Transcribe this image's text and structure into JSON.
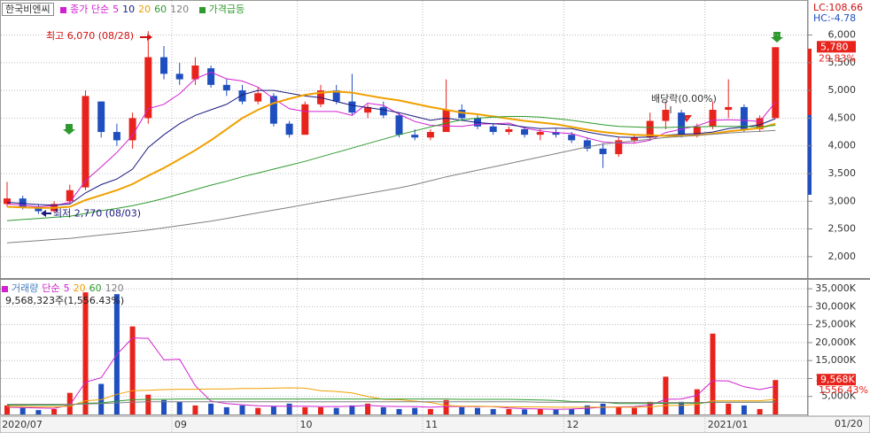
{
  "chart_data": [
    {
      "type": "candlestick",
      "title": "한국비엔씨",
      "indicator": "종가 단순",
      "signal": "가격급등",
      "lc": "LC:108.66",
      "hc": "HC:-4.78",
      "up_color": "#e8231c",
      "down_color": "#1f4fbf",
      "grid": true,
      "categories": [
        "2020/07",
        null,
        null,
        null,
        null,
        null,
        null,
        null,
        null,
        null,
        null,
        "09",
        null,
        null,
        null,
        null,
        null,
        null,
        null,
        "10",
        null,
        null,
        null,
        null,
        null,
        null,
        null,
        "11",
        null,
        null,
        null,
        null,
        null,
        null,
        null,
        null,
        "12",
        null,
        null,
        null,
        null,
        null,
        null,
        null,
        null,
        "2021/01",
        null,
        null,
        null,
        null
      ],
      "ohlc": [
        [
          2950,
          3350,
          2900,
          3050
        ],
        [
          3050,
          3100,
          2850,
          2900
        ],
        [
          2900,
          2950,
          2770,
          2820
        ],
        [
          2820,
          3000,
          2800,
          2950
        ],
        [
          3000,
          3300,
          2950,
          3200
        ],
        [
          3250,
          5000,
          3200,
          4900
        ],
        [
          4800,
          4800,
          4150,
          4250
        ],
        [
          4250,
          4400,
          4000,
          4100
        ],
        [
          4100,
          4600,
          3950,
          4500
        ],
        [
          4500,
          6070,
          4400,
          5600
        ],
        [
          5600,
          5800,
          5200,
          5300
        ],
        [
          5300,
          5500,
          5100,
          5200
        ],
        [
          5200,
          5600,
          5100,
          5450
        ],
        [
          5400,
          5450,
          5050,
          5100
        ],
        [
          5100,
          5200,
          4900,
          5000
        ],
        [
          5000,
          5100,
          4750,
          4800
        ],
        [
          4800,
          5050,
          4750,
          4950
        ],
        [
          4900,
          4950,
          4350,
          4400
        ],
        [
          4400,
          4450,
          4150,
          4200
        ],
        [
          4200,
          4800,
          4200,
          4750
        ],
        [
          4750,
          5100,
          4700,
          5000
        ],
        [
          5000,
          5100,
          4750,
          4800
        ],
        [
          4800,
          5300,
          4550,
          4600
        ],
        [
          4600,
          4750,
          4500,
          4700
        ],
        [
          4700,
          4800,
          4500,
          4550
        ],
        [
          4550,
          4600,
          4150,
          4200
        ],
        [
          4200,
          4300,
          4100,
          4150
        ],
        [
          4150,
          4300,
          4100,
          4250
        ],
        [
          4250,
          5200,
          4250,
          4650
        ],
        [
          4650,
          4750,
          4450,
          4500
        ],
        [
          4500,
          4550,
          4300,
          4350
        ],
        [
          4350,
          4400,
          4200,
          4250
        ],
        [
          4250,
          4350,
          4200,
          4300
        ],
        [
          4300,
          4350,
          4150,
          4200
        ],
        [
          4200,
          4300,
          4100,
          4250
        ],
        [
          4250,
          4300,
          4150,
          4200
        ],
        [
          4200,
          4250,
          4050,
          4100
        ],
        [
          4100,
          4150,
          3900,
          3950
        ],
        [
          3950,
          4050,
          3600,
          3850
        ],
        [
          3850,
          4150,
          3800,
          4100
        ],
        [
          4100,
          4200,
          4050,
          4150
        ],
        [
          4150,
          4600,
          4100,
          4450
        ],
        [
          4450,
          4800,
          4300,
          4650
        ],
        [
          4600,
          4650,
          4150,
          4200
        ],
        [
          4200,
          4400,
          4150,
          4350
        ],
        [
          4350,
          4800,
          4300,
          4650
        ],
        [
          4650,
          5200,
          4500,
          4700
        ],
        [
          4700,
          4750,
          4250,
          4300
        ],
        [
          4300,
          4550,
          4250,
          4500
        ],
        [
          4500,
          5780,
          4500,
          5780
        ]
      ],
      "series": [
        {
          "name": "5",
          "color": "#d020d0",
          "values": [
            2950,
            2930,
            2900,
            2920,
            2980,
            3370,
            3620,
            3880,
            4190,
            4670,
            4750,
            4940,
            5210,
            5330,
            5210,
            5170,
            5060,
            4850,
            4670,
            4620,
            4620,
            4620,
            4550,
            4770,
            4730,
            4570,
            4440,
            4370,
            4360,
            4350,
            4390,
            4400,
            4410,
            4320,
            4270,
            4240,
            4220,
            4140,
            4070,
            4050,
            4050,
            4100,
            4240,
            4300,
            4360,
            4460,
            4470,
            4460,
            4440,
            4790
          ]
        },
        {
          "name": "10",
          "color": "#1a1a80",
          "values": [
            2980,
            2960,
            2940,
            2930,
            2950,
            3150,
            3300,
            3400,
            3580,
            3970,
            4200,
            4400,
            4550,
            4650,
            4750,
            4920,
            5000,
            5000,
            4950,
            4900,
            4870,
            4800,
            4730,
            4690,
            4650,
            4600,
            4530,
            4460,
            4500,
            4460,
            4420,
            4400,
            4380,
            4340,
            4310,
            4320,
            4310,
            4250,
            4200,
            4160,
            4150,
            4160,
            4190,
            4210,
            4220,
            4250,
            4310,
            4340,
            4380,
            4490
          ]
        },
        {
          "name": "20",
          "color": "#f0a000",
          "values": [
            2900,
            2890,
            2880,
            2880,
            2900,
            3020,
            3110,
            3200,
            3310,
            3460,
            3600,
            3760,
            3920,
            4100,
            4300,
            4500,
            4650,
            4770,
            4850,
            4920,
            4960,
            4980,
            4960,
            4910,
            4860,
            4820,
            4760,
            4700,
            4650,
            4600,
            4570,
            4530,
            4490,
            4450,
            4420,
            4390,
            4340,
            4290,
            4250,
            4220,
            4200,
            4190,
            4180,
            4180,
            4190,
            4220,
            4260,
            4290,
            4320,
            4400
          ]
        },
        {
          "name": "60",
          "color": "#2e9a2e",
          "values": [
            2650,
            2670,
            2690,
            2710,
            2730,
            2780,
            2830,
            2870,
            2920,
            2980,
            3050,
            3130,
            3210,
            3290,
            3360,
            3440,
            3510,
            3580,
            3650,
            3720,
            3800,
            3880,
            3960,
            4040,
            4120,
            4200,
            4270,
            4340,
            4410,
            4470,
            4500,
            4520,
            4530,
            4530,
            4520,
            4490,
            4460,
            4420,
            4380,
            4350,
            4340,
            4330,
            4330,
            4340,
            4340,
            4350,
            4350,
            4350,
            4340,
            4370
          ]
        },
        {
          "name": "120",
          "color": "#808080",
          "values": [
            2250,
            2270,
            2290,
            2310,
            2330,
            2360,
            2390,
            2420,
            2450,
            2480,
            2520,
            2560,
            2600,
            2640,
            2690,
            2740,
            2790,
            2840,
            2890,
            2940,
            2990,
            3040,
            3090,
            3140,
            3190,
            3240,
            3300,
            3370,
            3440,
            3500,
            3560,
            3620,
            3680,
            3740,
            3800,
            3860,
            3920,
            3980,
            4030,
            4060,
            4090,
            4120,
            4150,
            4170,
            4190,
            4210,
            4230,
            4250,
            4260,
            4280
          ]
        }
      ],
      "ylim": [
        1630,
        6600
      ],
      "yticks": [
        {
          "value": 2000,
          "label": "2,000"
        },
        {
          "value": 2500,
          "label": "2,500"
        },
        {
          "value": 3000,
          "label": "3,000"
        },
        {
          "value": 3500,
          "label": "3,500"
        },
        {
          "value": 4000,
          "label": "4,000"
        },
        {
          "value": 4500,
          "label": "4,500"
        },
        {
          "value": 5000,
          "label": "5,000"
        },
        {
          "value": 5500,
          "label": "5,500"
        },
        {
          "value": 6000,
          "label": "6,000"
        }
      ],
      "annotations": [
        {
          "text": "최고 6,070 (08/28)",
          "value": 6070,
          "color": "#d01010"
        },
        {
          "text": "최저 2,770 (08/03)",
          "value": 2770,
          "color": "#1a1a80"
        },
        {
          "text": "배당락(0.00%)",
          "color": "#333333"
        }
      ],
      "last": {
        "label": "5,780",
        "change": "29.83%"
      }
    },
    {
      "type": "bar",
      "title": "거래량",
      "indicator": "단순",
      "summary": "9,568,323주(1,556.43%)",
      "date_label": "01/20",
      "values": [
        2500,
        1800,
        1200,
        1500,
        6000,
        34000,
        8500,
        33500,
        24500,
        5500,
        4000,
        3500,
        2500,
        3000,
        2000,
        2500,
        1800,
        2200,
        3000,
        2000,
        2000,
        1800,
        2500,
        3000,
        2000,
        1500,
        1800,
        1500,
        4000,
        2000,
        1800,
        1500,
        1500,
        1400,
        1500,
        1300,
        1600,
        2500,
        3000,
        2000,
        1800,
        3500,
        10500,
        3500,
        7000,
        22500,
        3000,
        2500,
        1500,
        9568
      ],
      "series": [
        {
          "name": "5",
          "color": "#d020d0",
          "values": [
            2000,
            1900,
            1800,
            1700,
            2600,
            9000,
            10200,
            16700,
            21300,
            21200,
            15200,
            15400,
            8000,
            3700,
            3000,
            2700,
            2400,
            2300,
            2300,
            2300,
            2200,
            2200,
            2300,
            2500,
            2300,
            2200,
            2200,
            2000,
            2200,
            2200,
            2200,
            2200,
            1800,
            1600,
            1500,
            1400,
            1500,
            1700,
            2000,
            2100,
            2200,
            2600,
            4200,
            4300,
            5300,
            9400,
            9300,
            7700,
            6900,
            7800
          ]
        },
        {
          "name": "20",
          "color": "#f0a000",
          "values": [
            2200,
            2200,
            2100,
            2100,
            2300,
            3800,
            4100,
            5600,
            6600,
            6700,
            6900,
            7000,
            7000,
            7100,
            7100,
            7200,
            7200,
            7300,
            7400,
            7300,
            6600,
            6400,
            6000,
            5000,
            4200,
            4100,
            3700,
            3300,
            2500,
            2300,
            2300,
            2200,
            2100,
            2100,
            2100,
            2000,
            2000,
            2000,
            2000,
            2000,
            2000,
            2100,
            2500,
            2500,
            2800,
            3800,
            3800,
            3800,
            3800,
            4200
          ]
        },
        {
          "name": "60",
          "color": "#2e9a2e",
          "values": [
            2600,
            2600,
            2600,
            2600,
            2700,
            3100,
            3200,
            3700,
            4100,
            4200,
            4200,
            4300,
            4300,
            4300,
            4300,
            4300,
            4300,
            4300,
            4300,
            4300,
            4300,
            4300,
            4300,
            4300,
            4300,
            4300,
            4300,
            4300,
            4300,
            4200,
            4200,
            4200,
            4200,
            4100,
            4000,
            3900,
            3600,
            3500,
            3400,
            3000,
            3000,
            3000,
            3100,
            3100,
            3100,
            3400,
            3400,
            3400,
            3400,
            3500
          ]
        },
        {
          "name": "120",
          "color": "#808080",
          "values": [
            2800,
            2800,
            2800,
            2800,
            2800,
            2900,
            3000,
            3200,
            3400,
            3500,
            3500,
            3500,
            3500,
            3500,
            3500,
            3500,
            3500,
            3500,
            3500,
            3500,
            3500,
            3500,
            3500,
            3500,
            3500,
            3500,
            3500,
            3500,
            3500,
            3500,
            3500,
            3500,
            3500,
            3500,
            3400,
            3400,
            3400,
            3400,
            3400,
            3300,
            3300,
            3300,
            3300,
            3300,
            3300,
            3400,
            3400,
            3400,
            3400,
            3400
          ]
        }
      ],
      "ylim": [
        0,
        37000
      ],
      "yticks": [
        {
          "value": 5000,
          "label": "5,000K"
        },
        {
          "value": 10000,
          "label": "10,000K"
        },
        {
          "value": 15000,
          "label": "15,000K"
        },
        {
          "value": 20000,
          "label": "20,000K"
        },
        {
          "value": 25000,
          "label": "25,000K"
        },
        {
          "value": 30000,
          "label": "30,000K"
        },
        {
          "value": 35000,
          "label": "35,000K"
        }
      ],
      "last": {
        "label": "9,568K",
        "change": "1556.43%"
      }
    }
  ]
}
